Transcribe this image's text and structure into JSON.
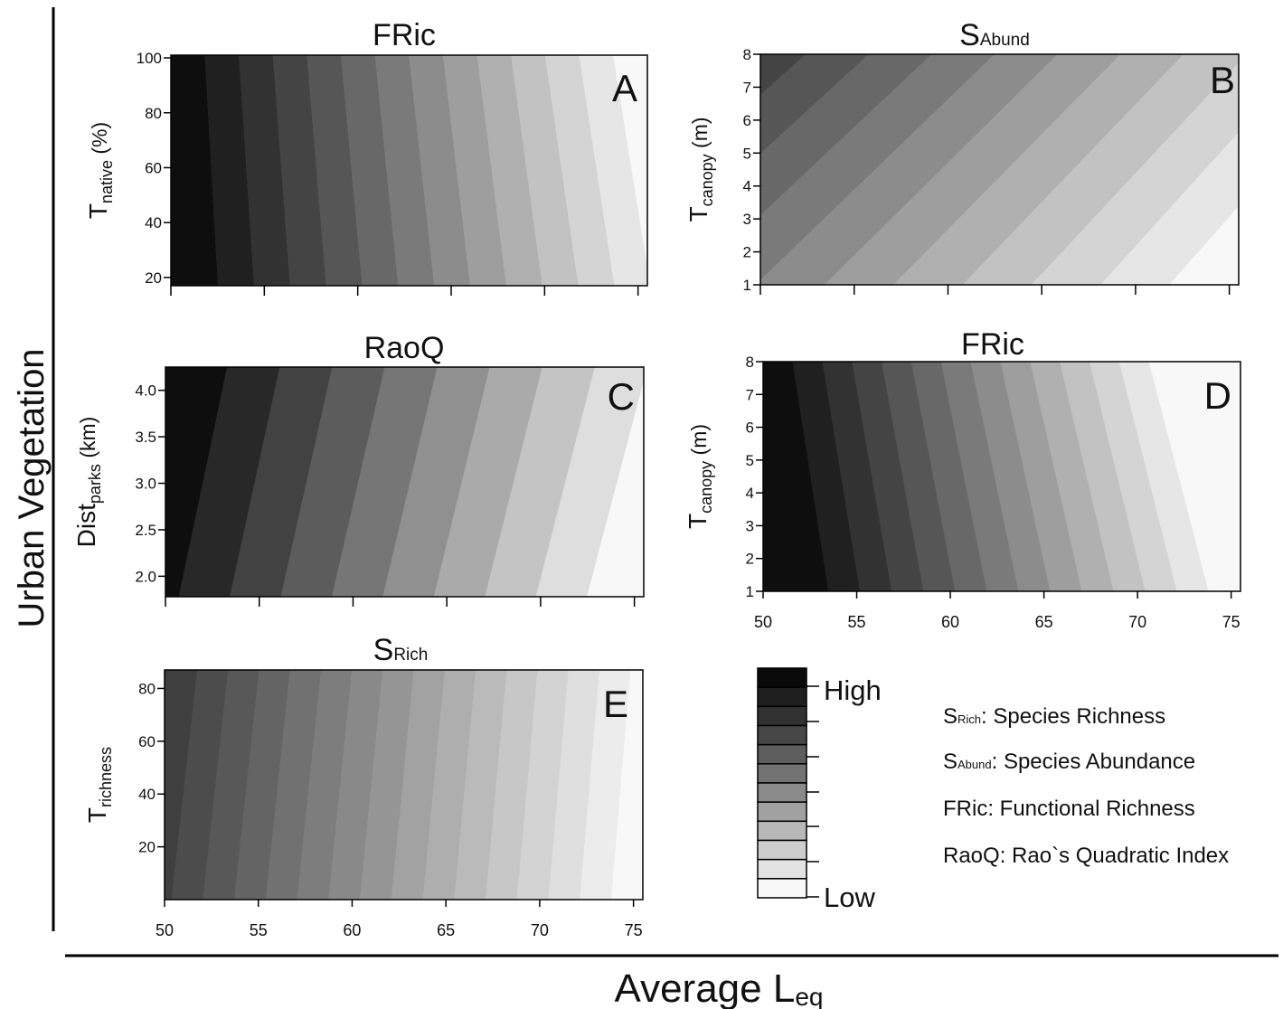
{
  "figure": {
    "y_group_label": "Urban Vegetation",
    "x_group_label": {
      "main": "Average L",
      "sub": "eq"
    }
  },
  "chart_data": [
    {
      "type": "heatmap",
      "panel": "A",
      "title": {
        "main": "FRic",
        "sub": ""
      },
      "ylabel": {
        "main": "T",
        "sub": "native",
        "suffix": " (%)"
      },
      "xlim": [
        50,
        75.5
      ],
      "ylim": [
        17,
        101
      ],
      "x_ticks": [
        50,
        55,
        60,
        65,
        70,
        75
      ],
      "x_tick_labels_shown": false,
      "y_ticks": [
        20,
        40,
        60,
        80,
        100
      ],
      "y_tick_labels": [
        "20",
        "40",
        "60",
        "80",
        "100"
      ],
      "contour": {
        "levels": 14,
        "x_at_top_edge": [
          50,
          75.5
        ],
        "x_at_bottom_edge": [
          50.6,
          77.6
        ],
        "high_at": "left"
      }
    },
    {
      "type": "heatmap",
      "panel": "B",
      "title": {
        "main": "S",
        "sub": "Abund"
      },
      "ylabel": {
        "main": "T",
        "sub": "canopy",
        "suffix": " (m)"
      },
      "xlim": [
        50,
        75.5
      ],
      "ylim": [
        1,
        8
      ],
      "x_ticks": [
        50,
        55,
        60,
        65,
        70,
        75
      ],
      "x_tick_labels_shown": false,
      "y_ticks": [
        1,
        2,
        3,
        4,
        5,
        6,
        7,
        8
      ],
      "y_tick_labels": [
        "1",
        "2",
        "3",
        "4",
        "5",
        "6",
        "7",
        "8"
      ],
      "contour": {
        "levels": 14,
        "x_at_top_edge": [
          39,
          86
        ],
        "x_at_bottom_edge": [
          24,
          75.5
        ],
        "high_at": "top-left"
      }
    },
    {
      "type": "heatmap",
      "panel": "C",
      "title": {
        "main": "RaoQ",
        "sub": ""
      },
      "ylabel": {
        "main": "Dist",
        "sub": "parks",
        "suffix": " (km)"
      },
      "xlim": [
        50,
        75.5
      ],
      "ylim": [
        1.78,
        4.25
      ],
      "x_ticks": [
        50,
        55,
        60,
        65,
        70,
        75
      ],
      "x_tick_labels_shown": false,
      "y_ticks": [
        2.0,
        2.5,
        3.0,
        3.5,
        4.0
      ],
      "y_tick_labels": [
        "2.0",
        "2.5",
        "3.0",
        "3.5",
        "4.0"
      ],
      "contour": {
        "levels": 10,
        "x_at_top_edge": [
          50.5,
          78.5
        ],
        "x_at_bottom_edge": [
          48,
          75.2
        ],
        "high_at": "left"
      }
    },
    {
      "type": "heatmap",
      "panel": "D",
      "title": {
        "main": "FRic",
        "sub": ""
      },
      "ylabel": {
        "main": "T",
        "sub": "canopy",
        "suffix": " (m)"
      },
      "xlim": [
        50,
        75.5
      ],
      "ylim": [
        1,
        8
      ],
      "x_ticks": [
        50,
        55,
        60,
        65,
        70,
        75
      ],
      "x_tick_labels_shown": true,
      "x_tick_labels": [
        "50",
        "55",
        "60",
        "65",
        "70",
        "75"
      ],
      "y_ticks": [
        1,
        2,
        3,
        4,
        5,
        6,
        7,
        8
      ],
      "y_tick_labels": [
        "1",
        "2",
        "3",
        "4",
        "5",
        "6",
        "7",
        "8"
      ],
      "contour": {
        "levels": 14,
        "x_at_top_edge": [
          50,
          72.2
        ],
        "x_at_bottom_edge": [
          51.8,
          75.5
        ],
        "high_at": "left"
      }
    },
    {
      "type": "heatmap",
      "panel": "E",
      "title": {
        "main": "S",
        "sub": "Rich"
      },
      "ylabel": {
        "main": "T",
        "sub": "richness",
        "suffix": ""
      },
      "xlim": [
        50,
        75.5
      ],
      "ylim": [
        0,
        87
      ],
      "x_ticks": [
        50,
        55,
        60,
        65,
        70,
        75
      ],
      "x_tick_labels_shown": true,
      "x_tick_labels": [
        "50",
        "55",
        "60",
        "65",
        "70",
        "75"
      ],
      "y_ticks": [
        20,
        40,
        60,
        80
      ],
      "y_tick_labels": [
        "20",
        "40",
        "60",
        "80"
      ],
      "contour": {
        "levels": 20,
        "x_at_top_edge": [
          43.5,
          76.5
        ],
        "x_at_bottom_edge": [
          42,
          75.5
        ],
        "high_at": "top-left"
      }
    }
  ],
  "colorbar": {
    "levels": 12,
    "high_label": "High",
    "low_label": "Low",
    "colors": [
      "#0a0a0a",
      "#1e1e1e",
      "#323232",
      "#474747",
      "#5d5d5d",
      "#737373",
      "#8a8a8a",
      "#a1a1a1",
      "#b8b8b8",
      "#cecece",
      "#e3e3e3",
      "#f8f8f8"
    ]
  },
  "legend": [
    {
      "abbr": "S",
      "sub": "Rich",
      "text": ": Species Richness"
    },
    {
      "abbr": "S",
      "sub": "Abund",
      "text": ": Species Abundance"
    },
    {
      "abbr": "FRic",
      "sub": "",
      "text": ": Functional Richness"
    },
    {
      "abbr": "RaoQ",
      "sub": "",
      "text": ": Rao`s Quadratic Index"
    }
  ]
}
